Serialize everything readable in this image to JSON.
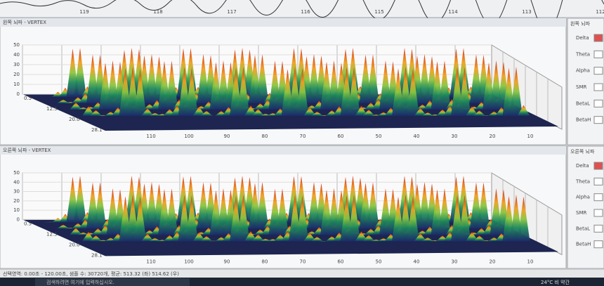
{
  "top_strip": {
    "ticks": [
      "119",
      "118",
      "117",
      "116",
      "115",
      "114",
      "113",
      "112"
    ]
  },
  "panels": [
    {
      "title": "왼쪽 뇌파 - VERTEX",
      "legend_title": "왼쪽 뇌파",
      "bands": [
        "Delta",
        "Theta",
        "Alpha",
        "SMR",
        "BetaL",
        "BetaH"
      ],
      "y_ticks": [
        "50",
        "40",
        "30",
        "20",
        "10",
        "0"
      ],
      "depth_ticks": [
        "0.5",
        "12.5",
        "20.0",
        "28.1"
      ],
      "x_ticks": [
        "110",
        "100",
        "90",
        "80",
        "70",
        "60",
        "50",
        "40",
        "30",
        "20",
        "10"
      ]
    },
    {
      "title": "오른쪽 뇌파 - VERTEX",
      "legend_title": "오른쪽 뇌파",
      "bands": [
        "Delta",
        "Theta",
        "Alpha",
        "SMR",
        "BetaL",
        "BetaH"
      ],
      "y_ticks": [
        "50",
        "40",
        "30",
        "20",
        "10",
        "0"
      ],
      "depth_ticks": [
        "0.5",
        "12.5",
        "20.0",
        "28.1"
      ],
      "x_ticks": [
        "110",
        "100",
        "90",
        "80",
        "70",
        "60",
        "50",
        "40",
        "30",
        "20",
        "10"
      ]
    }
  ],
  "status_bar": "선택영역: 0.00초 - 120.00초, 샘플 수: 30720개, 평균: 513.32 (좌) 514.62 (우)",
  "taskbar": {
    "search": "검색하려면 여기에 입력하십시오.",
    "weather": "24°C 비 약간"
  }
}
